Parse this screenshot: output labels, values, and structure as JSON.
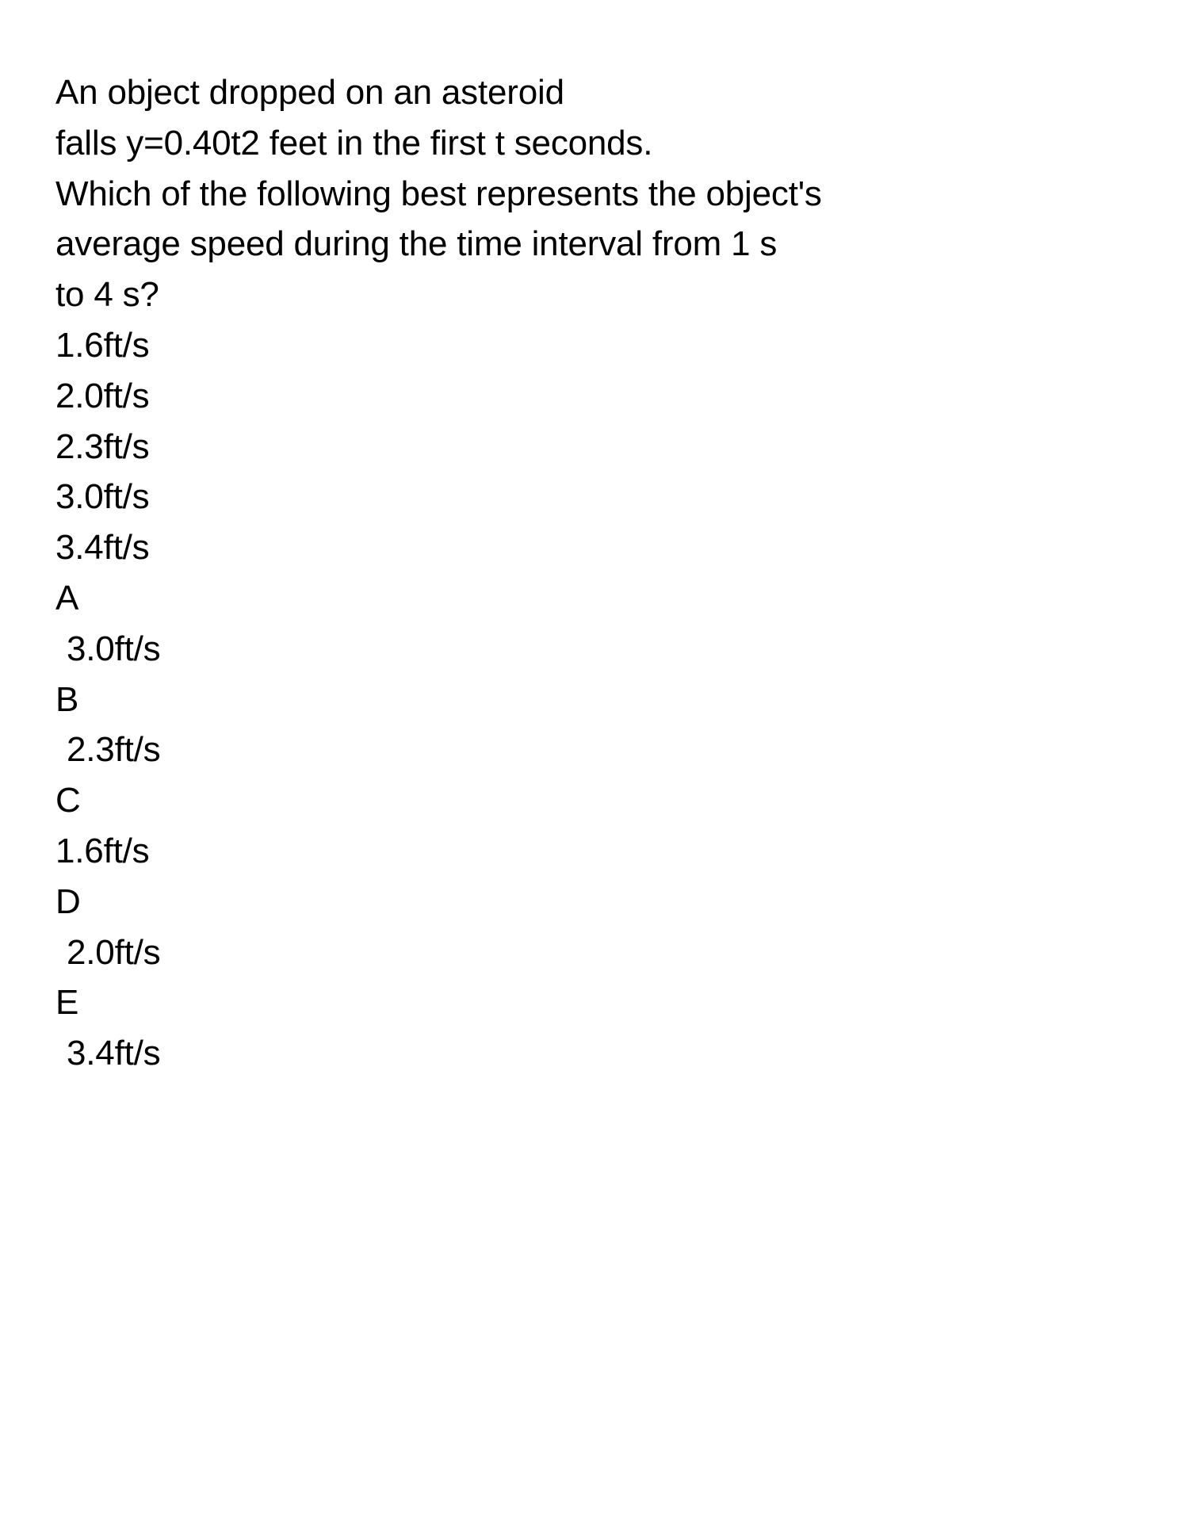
{
  "question": {
    "line1": "An object dropped on an asteroid",
    "line2": "falls y=0.40t2 feet in the first t seconds.",
    "line3": "Which of the following best represents the object's",
    "line4": "average speed during the time interval from 1 s",
    "line5": "to 4 s?"
  },
  "plain_options": [
    "1.6ft/s",
    "2.0ft/s",
    "2.3ft/s",
    "3.0ft/s",
    "3.4ft/s"
  ],
  "labeled_options": [
    {
      "letter": "A",
      "value": "3.0ft/s",
      "indent": true
    },
    {
      "letter": "B",
      "value": "2.3ft/s",
      "indent": true
    },
    {
      "letter": "C",
      "value": "1.6ft/s",
      "indent": false
    },
    {
      "letter": "D",
      "value": "2.0ft/s",
      "indent": true
    },
    {
      "letter": "E",
      "value": "3.4ft/s",
      "indent": true
    }
  ],
  "colors": {
    "background": "#ffffff",
    "text": "#000000"
  },
  "typography": {
    "font_size_pt": 33,
    "font_weight": 400,
    "line_height": 1.45
  }
}
